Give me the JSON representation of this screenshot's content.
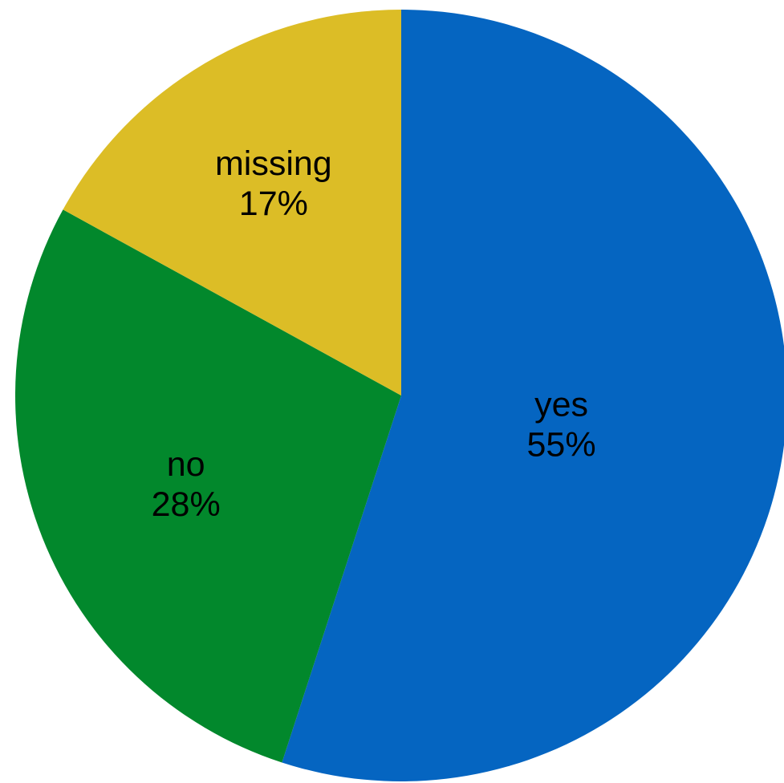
{
  "chart_data": {
    "type": "pie",
    "title": "",
    "start_angle_deg": 0,
    "direction": "clockwise",
    "slices": [
      {
        "label": "yes",
        "value": 55,
        "value_label": "55%",
        "color": "#0565C1"
      },
      {
        "label": "no",
        "value": 28,
        "value_label": "28%",
        "color": "#02882C"
      },
      {
        "label": "missing",
        "value": 17,
        "value_label": "17%",
        "color": "#DCBD26"
      }
    ]
  }
}
